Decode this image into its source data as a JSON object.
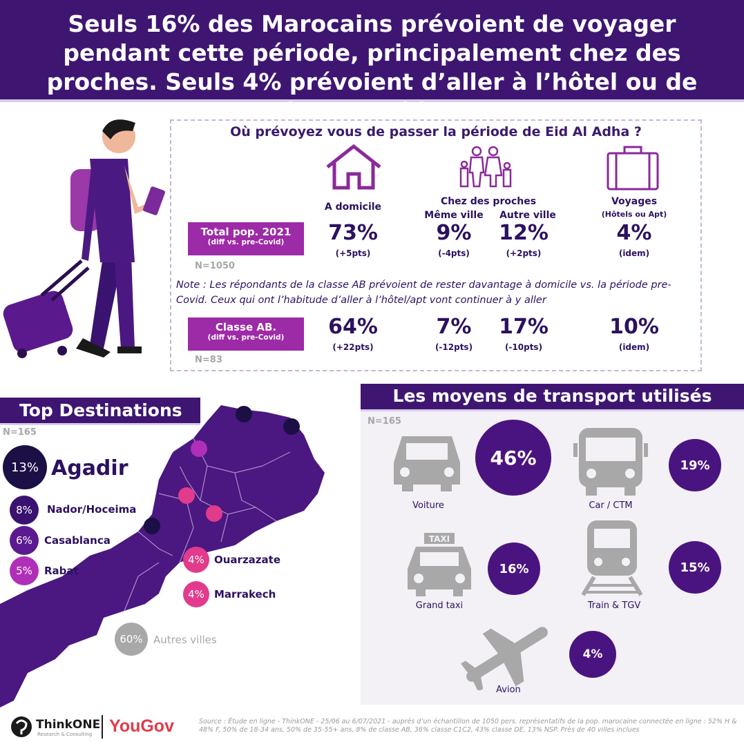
{
  "header": {
    "title": "Seuls 16% des Marocains prévoient de voyager pendant cette période, principalement chez des proches. Seuls 4% prévoient d’aller à l’hôtel ou de louer un bien"
  },
  "survey": {
    "question": "Où prévoyez vous de passer la période de Eid Al Adha ?",
    "categories": {
      "home": "A domicile",
      "relatives": "Chez des proches",
      "same_city": "Même ville",
      "other_city": "Autre ville",
      "travel": "Voyages",
      "travel_sub": "(Hôtels ou Apt)"
    },
    "rows": [
      {
        "label": "Total pop. 2021",
        "sublabel": "(diff vs. pre-Covid)",
        "n": "N=1050",
        "home": "73%",
        "home_diff": "(+5pts)",
        "same_city": "9%",
        "same_city_diff": "(-4pts)",
        "other_city": "12%",
        "other_city_diff": "(+2pts)",
        "travel": "4%",
        "travel_diff": "(idem)"
      },
      {
        "label": "Classe AB.",
        "sublabel": "(diff vs. pre-Covid)",
        "n": "N=83",
        "home": "64%",
        "home_diff": "(+22pts)",
        "same_city": "7%",
        "same_city_diff": "(-12pts)",
        "other_city": "17%",
        "other_city_diff": "(-10pts)",
        "travel": "10%",
        "travel_diff": "(idem)"
      }
    ],
    "note": "Note : Les répondants de la classe AB prévoient de rester davantage à domicile vs. la période pre-Covid. Ceux qui ont l’habitude d’aller à l’hôtel/apt vont continuer à y aller"
  },
  "destinations": {
    "title": "Top Destinations",
    "n": "N=165",
    "items": [
      {
        "pct": "13%",
        "name": "Agadir",
        "color": "#1b0f45"
      },
      {
        "pct": "8%",
        "name": "Nador/Hoceima",
        "color": "#3a1370"
      },
      {
        "pct": "6%",
        "name": "Casablanca",
        "color": "#5c1a92"
      },
      {
        "pct": "5%",
        "name": "Rabat",
        "color": "#b02fb8"
      },
      {
        "pct": "4%",
        "name": "Ouarzazate",
        "color": "#e23a8c"
      },
      {
        "pct": "4%",
        "name": "Marrakech",
        "color": "#e23a8c"
      },
      {
        "pct": "60%",
        "name": "Autres villes",
        "color": "#a8a8a8"
      }
    ]
  },
  "transport": {
    "title": "Les moyens de transport utilisés",
    "n": "N=165",
    "items": [
      {
        "name": "Voiture",
        "pct": "46%",
        "icon": "car-icon"
      },
      {
        "name": "Car / CTM",
        "pct": "19%",
        "icon": "bus-icon"
      },
      {
        "name": "Grand taxi",
        "pct": "16%",
        "icon": "taxi-icon"
      },
      {
        "name": "Train & TGV",
        "pct": "15%",
        "icon": "train-icon"
      },
      {
        "name": "Avion",
        "pct": "4%",
        "icon": "plane-icon"
      }
    ],
    "taxi_sign": "TAXI"
  },
  "chart_data": [
    {
      "type": "table",
      "title": "Où prévoyez vous de passer la période de Eid Al Adha ?",
      "columns": [
        "A domicile",
        "Même ville",
        "Autre ville",
        "Voyages (Hôtels ou Apt)"
      ],
      "rows": [
        {
          "name": "Total pop. 2021",
          "values": [
            73,
            9,
            12,
            4
          ],
          "diff": [
            "+5pts",
            "-4pts",
            "+2pts",
            "idem"
          ]
        },
        {
          "name": "Classe AB.",
          "values": [
            64,
            7,
            17,
            10
          ],
          "diff": [
            "+22pts",
            "-12pts",
            "-10pts",
            "idem"
          ]
        }
      ]
    },
    {
      "type": "bar",
      "title": "Top Destinations",
      "categories": [
        "Agadir",
        "Nador/Hoceima",
        "Casablanca",
        "Rabat",
        "Ouarzazate",
        "Marrakech",
        "Autres villes"
      ],
      "values": [
        13,
        8,
        6,
        5,
        4,
        4,
        60
      ]
    },
    {
      "type": "bar",
      "title": "Les moyens de transport utilisés",
      "categories": [
        "Voiture",
        "Car / CTM",
        "Grand taxi",
        "Train & TGV",
        "Avion"
      ],
      "values": [
        46,
        19,
        16,
        15,
        4
      ]
    }
  ],
  "footer": {
    "brand1": "ThinkONE",
    "brand1_sub": "Research & Consulting",
    "brand2": "YouGov",
    "source": "Source : Étude en ligne - ThinkONE - 25/06 au 6/07/2021 - auprès d’un échantillon de 1050 pers. représentatifs de la pop. marocaine connectée en ligne : 52% H & 48% F, 50% de 18-34 ans, 50% de 35-55+ ans, 8% de classe AB, 36% classe C1C2, 43% classe DE, 13% NSP. Près de 40 villes inclues"
  }
}
